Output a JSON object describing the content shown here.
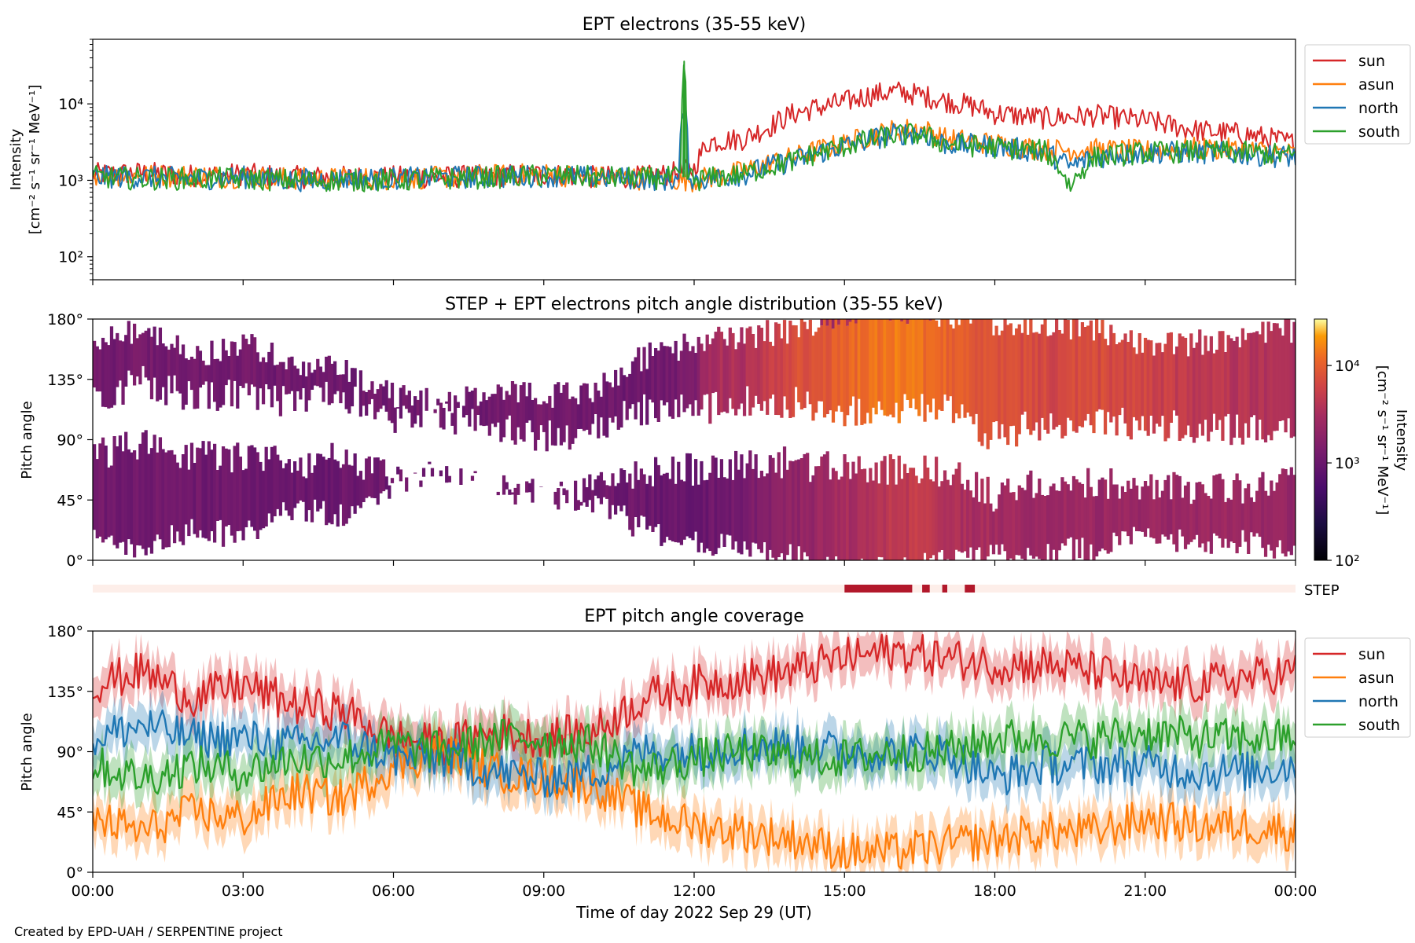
{
  "footer": {
    "credit": "Created by EPD-UAH / SERPENTINE project"
  },
  "colors": {
    "sun": "#d62728",
    "asun": "#ff7f0e",
    "north": "#1f77b4",
    "south": "#2ca02c",
    "step": "#b2182b",
    "step_bg": "#fdeee9"
  },
  "chart_data": [
    {
      "type": "line",
      "title": "EPT electrons (35-55 keV)",
      "ylabel": [
        "Intensity",
        "[cm⁻² s⁻¹ sr⁻¹ MeV⁻¹]"
      ],
      "yscale": "log",
      "ylim": [
        50,
        70000
      ],
      "yticks": [
        {
          "value": 100,
          "label": "10²"
        },
        {
          "value": 1000,
          "label": "10³"
        },
        {
          "value": 10000,
          "label": "10⁴"
        }
      ],
      "x_unit": "hours",
      "xlim": [
        0,
        24
      ],
      "legend": {
        "placement": "outside-right",
        "entries": [
          "sun",
          "asun",
          "north",
          "south"
        ]
      },
      "series": [
        {
          "name": "sun",
          "color": "#d62728",
          "points": [
            [
              0,
              1200
            ],
            [
              1,
              1250
            ],
            [
              2,
              1150
            ],
            [
              3,
              1200
            ],
            [
              4,
              1100
            ],
            [
              5,
              1100
            ],
            [
              6,
              1100
            ],
            [
              7,
              1100
            ],
            [
              8,
              1150
            ],
            [
              9,
              1200
            ],
            [
              10,
              1100
            ],
            [
              11,
              1100
            ],
            [
              11.5,
              1200
            ],
            [
              12,
              1400
            ],
            [
              12.3,
              3200
            ],
            [
              13,
              3500
            ],
            [
              13.5,
              5000
            ],
            [
              14,
              7500
            ],
            [
              15,
              10500
            ],
            [
              15.5,
              13000
            ],
            [
              16,
              14500
            ],
            [
              16.5,
              13000
            ],
            [
              17,
              11000
            ],
            [
              17.5,
              9500
            ],
            [
              18,
              7500
            ],
            [
              19,
              6500
            ],
            [
              20,
              7000
            ],
            [
              21,
              6000
            ],
            [
              22,
              4500
            ],
            [
              23,
              4000
            ],
            [
              24,
              3000
            ]
          ]
        },
        {
          "name": "asun",
          "color": "#ff7f0e",
          "points": [
            [
              0,
              1200
            ],
            [
              1,
              1150
            ],
            [
              2,
              1150
            ],
            [
              3,
              1100
            ],
            [
              4,
              1050
            ],
            [
              5,
              1050
            ],
            [
              6,
              1050
            ],
            [
              7,
              1100
            ],
            [
              8,
              1150
            ],
            [
              9,
              1200
            ],
            [
              10,
              1100
            ],
            [
              11,
              1050
            ],
            [
              12,
              1000
            ],
            [
              13,
              1300
            ],
            [
              14,
              2000
            ],
            [
              15,
              3000
            ],
            [
              16,
              4500
            ],
            [
              16.5,
              4800
            ],
            [
              17,
              3500
            ],
            [
              18,
              3000
            ],
            [
              19,
              2500
            ],
            [
              20,
              2500
            ],
            [
              21,
              2400
            ],
            [
              22,
              2600
            ],
            [
              23,
              2500
            ],
            [
              24,
              2200
            ]
          ]
        },
        {
          "name": "north",
          "color": "#1f77b4",
          "points": [
            [
              0,
              1100
            ],
            [
              1,
              1100
            ],
            [
              2,
              1050
            ],
            [
              3,
              1100
            ],
            [
              4,
              1000
            ],
            [
              5,
              1050
            ],
            [
              6,
              1050
            ],
            [
              7,
              1100
            ],
            [
              8,
              1100
            ],
            [
              9,
              1150
            ],
            [
              10,
              1100
            ],
            [
              11,
              1050
            ],
            [
              11.7,
              1000
            ],
            [
              11.8,
              9000
            ],
            [
              11.9,
              1200
            ],
            [
              12,
              1000
            ],
            [
              13,
              1200
            ],
            [
              14,
              1800
            ],
            [
              15,
              2800
            ],
            [
              16,
              4000
            ],
            [
              16.5,
              4200
            ],
            [
              17,
              3000
            ],
            [
              18,
              2800
            ],
            [
              19,
              2300
            ],
            [
              19.5,
              1500
            ],
            [
              20,
              2000
            ],
            [
              21,
              2300
            ],
            [
              22,
              2300
            ],
            [
              23,
              2200
            ],
            [
              24,
              2000
            ]
          ]
        },
        {
          "name": "south",
          "color": "#2ca02c",
          "points": [
            [
              0,
              1100
            ],
            [
              1,
              1050
            ],
            [
              2,
              1050
            ],
            [
              3,
              1050
            ],
            [
              4,
              1000
            ],
            [
              5,
              1000
            ],
            [
              6,
              1000
            ],
            [
              7,
              1050
            ],
            [
              8,
              1100
            ],
            [
              9,
              1150
            ],
            [
              10,
              1100
            ],
            [
              11,
              1050
            ],
            [
              11.75,
              1100
            ],
            [
              11.8,
              36000
            ],
            [
              11.85,
              1200
            ],
            [
              12,
              1000
            ],
            [
              13,
              1200
            ],
            [
              14,
              1800
            ],
            [
              15,
              2800
            ],
            [
              16,
              3900
            ],
            [
              16.5,
              4000
            ],
            [
              17,
              3000
            ],
            [
              18,
              2700
            ],
            [
              19,
              2400
            ],
            [
              19.5,
              800
            ],
            [
              20,
              2000
            ],
            [
              21,
              2300
            ],
            [
              22,
              2400
            ],
            [
              23,
              2300
            ],
            [
              24,
              2100
            ]
          ]
        }
      ]
    },
    {
      "type": "heatmap",
      "title": "STEP + EPT electrons pitch angle distribution (35-55 keV)",
      "ylabel": "Pitch angle",
      "ylim": [
        0,
        180
      ],
      "yticks": [
        {
          "value": 0,
          "label": "0°"
        },
        {
          "value": 45,
          "label": "45°"
        },
        {
          "value": 90,
          "label": "90°"
        },
        {
          "value": 135,
          "label": "135°"
        },
        {
          "value": 180,
          "label": "180°"
        }
      ],
      "colorbar": {
        "label": [
          "Intensity",
          "[cm⁻² s⁻¹ sr⁻¹ MeV⁻¹]"
        ],
        "scale": "log",
        "range": [
          100,
          30000
        ],
        "colormap": "inferno",
        "ticks": [
          {
            "value": 100,
            "label": "10²"
          },
          {
            "value": 1000,
            "label": "10³"
          },
          {
            "value": 10000,
            "label": "10⁴"
          }
        ]
      },
      "note_x_unit": "hours"
    },
    {
      "type": "bar",
      "label": "STEP",
      "x_unit": "hours",
      "intervals": [
        [
          15.0,
          16.35
        ],
        [
          16.55,
          16.7
        ],
        [
          16.95,
          17.05
        ],
        [
          17.4,
          17.6
        ]
      ]
    },
    {
      "type": "line",
      "title": "EPT pitch angle coverage",
      "ylabel": "Pitch angle",
      "xlabel": "Time of day 2022 Sep 29 (UT)",
      "xlim": [
        0,
        24
      ],
      "x_unit": "hours",
      "xticks": [
        {
          "value": 0,
          "label": "00:00"
        },
        {
          "value": 3,
          "label": "03:00"
        },
        {
          "value": 6,
          "label": "06:00"
        },
        {
          "value": 9,
          "label": "09:00"
        },
        {
          "value": 12,
          "label": "12:00"
        },
        {
          "value": 15,
          "label": "15:00"
        },
        {
          "value": 18,
          "label": "18:00"
        },
        {
          "value": 21,
          "label": "21:00"
        },
        {
          "value": 24,
          "label": "00:00"
        }
      ],
      "ylim": [
        0,
        180
      ],
      "yticks": [
        {
          "value": 0,
          "label": "0°"
        },
        {
          "value": 45,
          "label": "45°"
        },
        {
          "value": 90,
          "label": "90°"
        },
        {
          "value": 135,
          "label": "135°"
        },
        {
          "value": 180,
          "label": "180°"
        }
      ],
      "legend": {
        "placement": "outside-right",
        "entries": [
          "sun",
          "asun",
          "north",
          "south"
        ]
      },
      "band_halfwidth_deg": 15,
      "series": [
        {
          "name": "sun",
          "color": "#d62728",
          "points": [
            [
              0,
              140
            ],
            [
              1,
              150
            ],
            [
              2,
              130
            ],
            [
              3,
              140
            ],
            [
              4,
              125
            ],
            [
              5,
              120
            ],
            [
              6,
              100
            ],
            [
              7,
              95
            ],
            [
              8,
              105
            ],
            [
              9,
              100
            ],
            [
              10,
              105
            ],
            [
              11,
              130
            ],
            [
              12,
              140
            ],
            [
              13,
              145
            ],
            [
              14,
              150
            ],
            [
              15,
              160
            ],
            [
              16,
              165
            ],
            [
              17,
              160
            ],
            [
              18,
              155
            ],
            [
              19,
              155
            ],
            [
              20,
              150
            ],
            [
              21,
              140
            ],
            [
              22,
              140
            ],
            [
              23,
              145
            ],
            [
              24,
              150
            ]
          ]
        },
        {
          "name": "asun",
          "color": "#ff7f0e",
          "points": [
            [
              0,
              40
            ],
            [
              1,
              30
            ],
            [
              2,
              45
            ],
            [
              3,
              40
            ],
            [
              4,
              60
            ],
            [
              5,
              55
            ],
            [
              6,
              80
            ],
            [
              7,
              90
            ],
            [
              8,
              75
            ],
            [
              9,
              70
            ],
            [
              10,
              65
            ],
            [
              11,
              45
            ],
            [
              12,
              35
            ],
            [
              13,
              30
            ],
            [
              14,
              25
            ],
            [
              15,
              15
            ],
            [
              16,
              15
            ],
            [
              17,
              20
            ],
            [
              18,
              25
            ],
            [
              19,
              30
            ],
            [
              20,
              30
            ],
            [
              21,
              40
            ],
            [
              22,
              35
            ],
            [
              23,
              35
            ],
            [
              24,
              30
            ]
          ]
        },
        {
          "name": "north",
          "color": "#1f77b4",
          "points": [
            [
              0,
              100
            ],
            [
              1,
              110
            ],
            [
              2,
              100
            ],
            [
              3,
              100
            ],
            [
              4,
              95
            ],
            [
              5,
              100
            ],
            [
              6,
              85
            ],
            [
              7,
              85
            ],
            [
              8,
              75
            ],
            [
              9,
              70
            ],
            [
              10,
              75
            ],
            [
              11,
              90
            ],
            [
              12,
              90
            ],
            [
              13,
              95
            ],
            [
              14,
              95
            ],
            [
              15,
              90
            ],
            [
              16,
              90
            ],
            [
              17,
              90
            ],
            [
              18,
              70
            ],
            [
              19,
              80
            ],
            [
              20,
              80
            ],
            [
              21,
              80
            ],
            [
              22,
              75
            ],
            [
              23,
              75
            ],
            [
              24,
              80
            ]
          ]
        },
        {
          "name": "south",
          "color": "#2ca02c",
          "points": [
            [
              0,
              80
            ],
            [
              1,
              70
            ],
            [
              2,
              80
            ],
            [
              3,
              75
            ],
            [
              4,
              85
            ],
            [
              5,
              85
            ],
            [
              6,
              95
            ],
            [
              7,
              90
            ],
            [
              8,
              100
            ],
            [
              9,
              100
            ],
            [
              10,
              95
            ],
            [
              11,
              75
            ],
            [
              12,
              85
            ],
            [
              13,
              90
            ],
            [
              14,
              85
            ],
            [
              15,
              85
            ],
            [
              16,
              90
            ],
            [
              17,
              90
            ],
            [
              18,
              100
            ],
            [
              19,
              100
            ],
            [
              20,
              100
            ],
            [
              21,
              105
            ],
            [
              22,
              100
            ],
            [
              23,
              100
            ],
            [
              24,
              100
            ]
          ]
        }
      ]
    }
  ]
}
